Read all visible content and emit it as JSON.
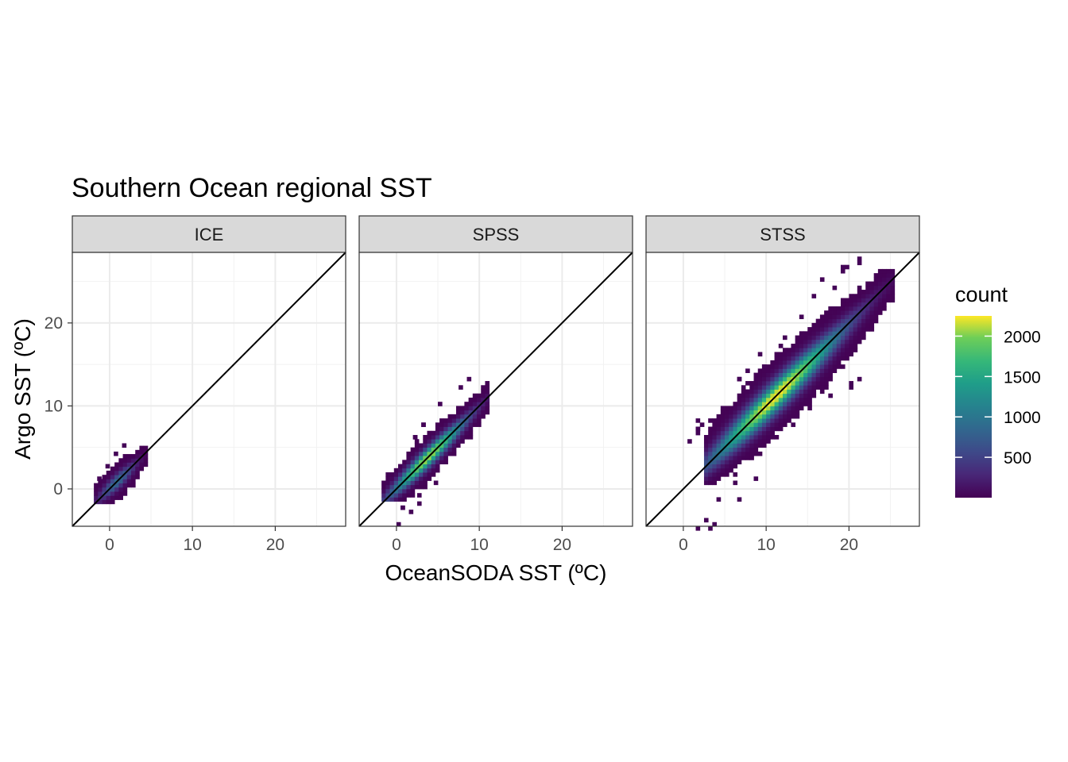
{
  "chart_data": {
    "type": "heatmap",
    "title": "Southern Ocean regional SST",
    "xlabel": "OceanSODA SST (ºC)",
    "ylabel": "Argo SST (ºC)",
    "xlim": [
      -4.5,
      28.5
    ],
    "ylim": [
      -4.5,
      28.5
    ],
    "x_ticks": [
      0,
      10,
      20
    ],
    "y_ticks": [
      0,
      10,
      20
    ],
    "reference_line": "y = x",
    "colorscale": "viridis",
    "panels": [
      {
        "name": "ICE",
        "cloud": {
          "x_min": -1.9,
          "x_max": 4.5,
          "y_min": -1.8,
          "y_max": 5.0,
          "center": [
            0.5,
            0.8
          ],
          "peak_count": 900
        }
      },
      {
        "name": "SPSS",
        "cloud": {
          "x_min": -1.8,
          "x_max": 11.0,
          "y_min": -1.5,
          "y_max": 13.5,
          "center": [
            3.5,
            3.6
          ],
          "peak_count": 2100
        }
      },
      {
        "name": "STSS",
        "cloud": {
          "x_min": 2.5,
          "x_max": 25.0,
          "y_min": 0.5,
          "y_max": 26.0,
          "center": [
            11.0,
            11.0
          ],
          "peak_count": 2300
        }
      }
    ],
    "legend": {
      "title": "count",
      "labels": [
        "500",
        "1000",
        "1500",
        "2000"
      ],
      "values": [
        500,
        1000,
        1500,
        2000
      ],
      "range": [
        0,
        2250
      ],
      "position": "right"
    }
  }
}
